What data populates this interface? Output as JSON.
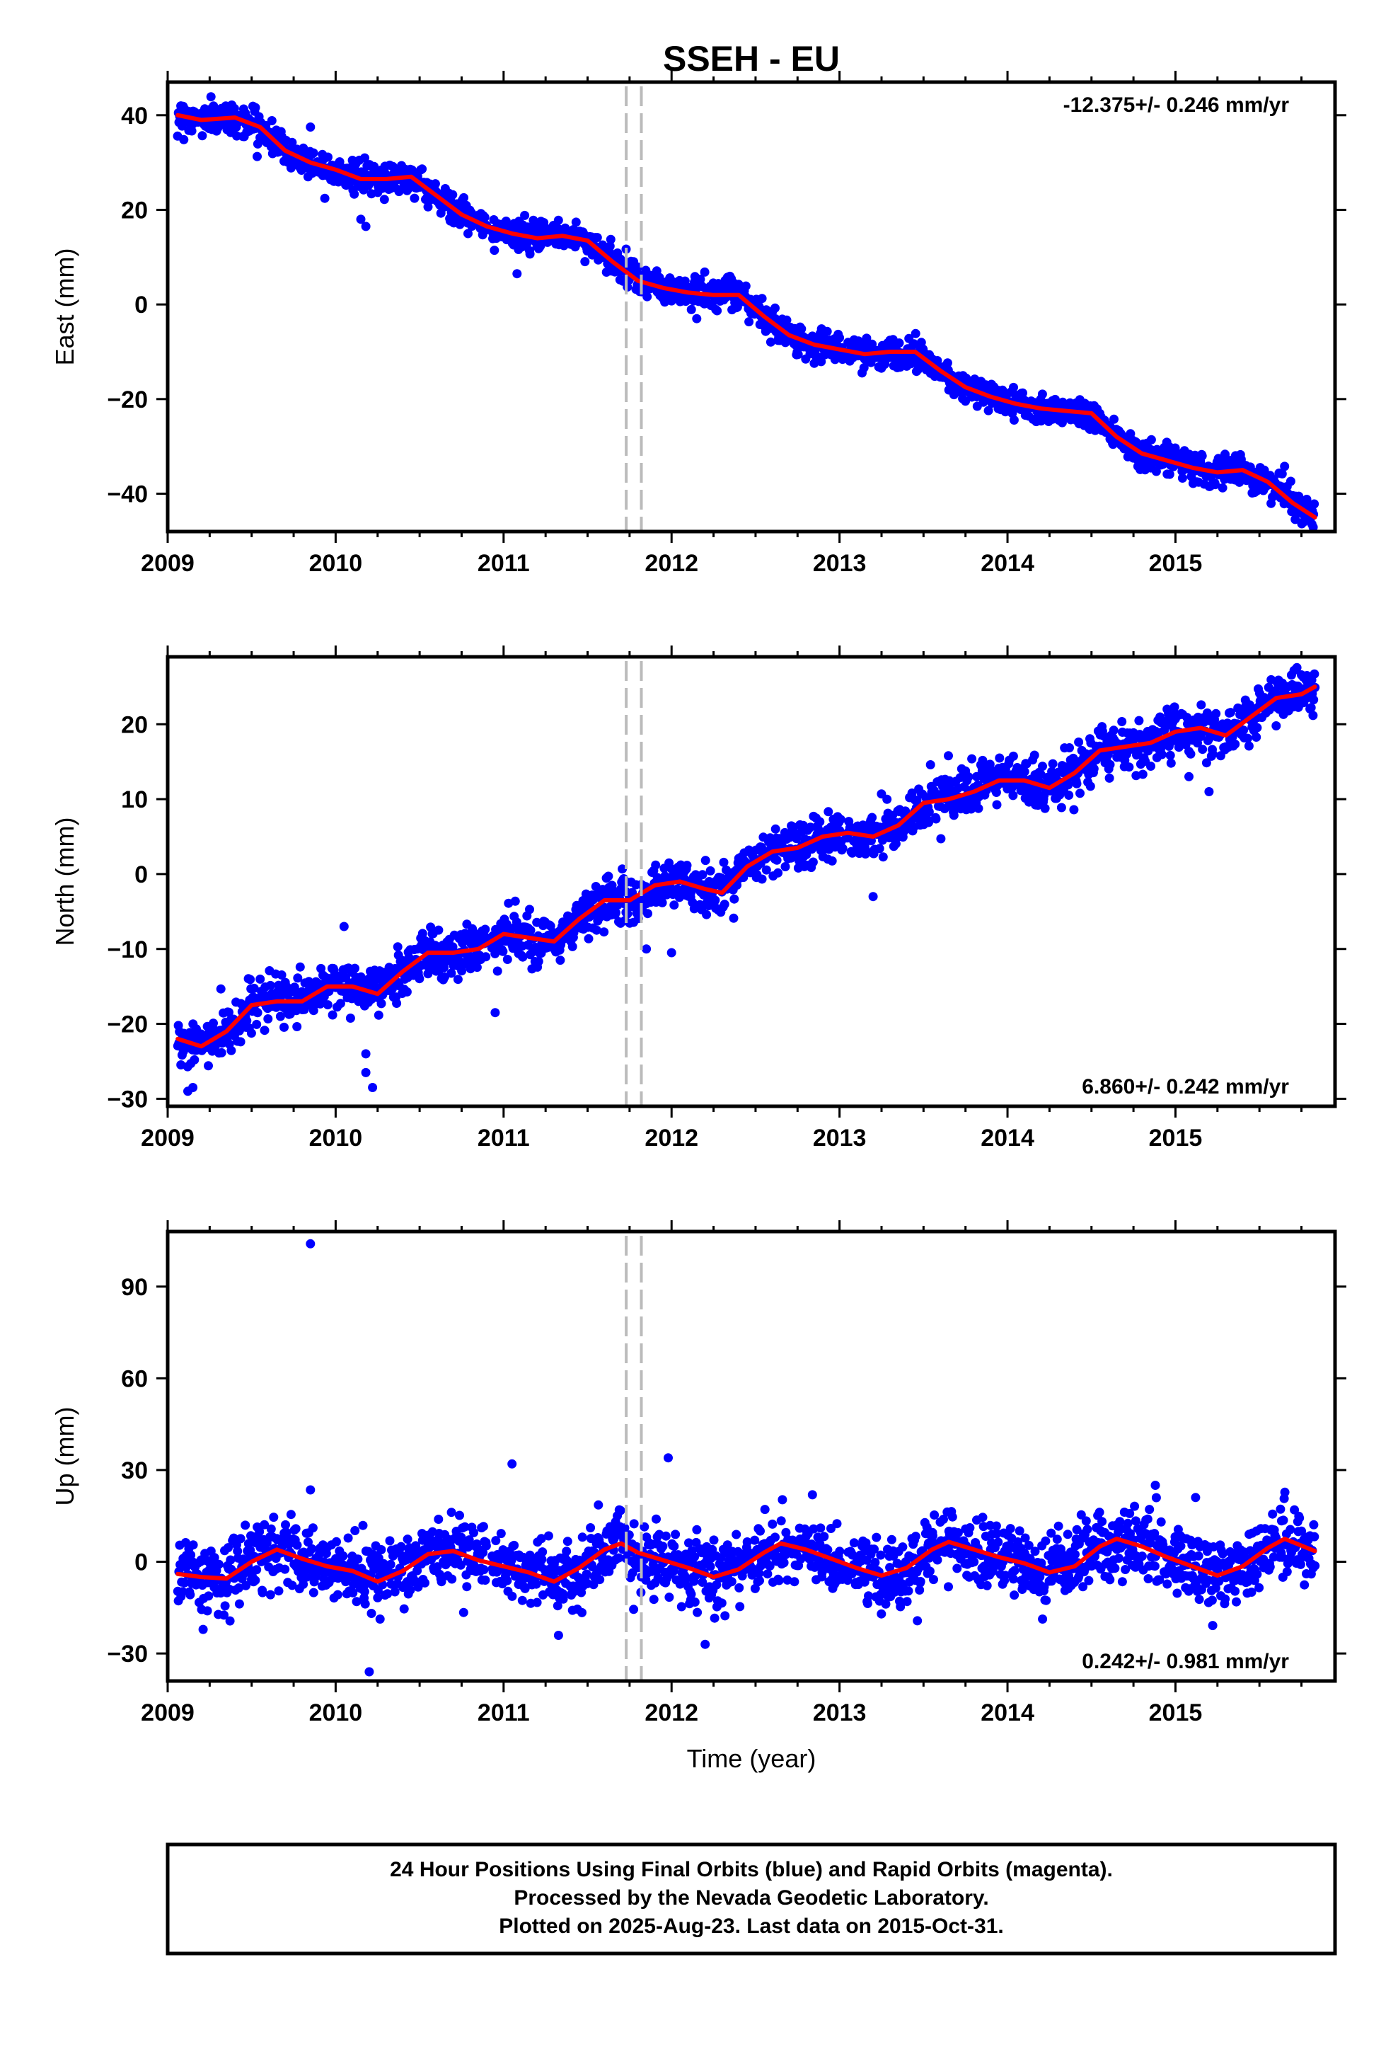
{
  "page": {
    "title": "SSEH - EU",
    "caption": [
      "24 Hour Positions Using Final Orbits (blue) and Rapid Orbits (magenta).",
      "Processed by the Nevada Geodetic Laboratory.",
      "Plotted on 2025-Aug-23. Last data on 2015-Oct-31."
    ]
  },
  "colors": {
    "points": "#0000ff",
    "fit": "#ff0000",
    "marker": "#bbbbbb",
    "frame": "#000000"
  },
  "chart_data": [
    {
      "type": "scatter",
      "ylabel": "East (mm)",
      "xlabel": "",
      "xlim": [
        2009.0,
        2015.95
      ],
      "ylim": [
        -48,
        47
      ],
      "xticks": [
        2009,
        2010,
        2011,
        2012,
        2013,
        2014,
        2015
      ],
      "yticks": [
        -40,
        -20,
        0,
        20,
        40
      ],
      "rate_label": "-12.375+/- 0.246 mm/yr",
      "rate_position": "top-right",
      "markers": [
        2011.73,
        2011.82
      ],
      "trend": {
        "t0": 2009.06,
        "y0": 40.0,
        "rate": -12.375
      },
      "fit": [
        [
          2009.06,
          40.0
        ],
        [
          2009.2,
          39.0
        ],
        [
          2009.4,
          39.5
        ],
        [
          2009.55,
          37.5
        ],
        [
          2009.7,
          32.5
        ],
        [
          2009.85,
          30.0
        ],
        [
          2010.0,
          28.5
        ],
        [
          2010.15,
          26.5
        ],
        [
          2010.3,
          26.5
        ],
        [
          2010.45,
          27.0
        ],
        [
          2010.6,
          23.0
        ],
        [
          2010.75,
          19.0
        ],
        [
          2010.9,
          16.5
        ],
        [
          2011.05,
          15.0
        ],
        [
          2011.2,
          14.0
        ],
        [
          2011.35,
          14.5
        ],
        [
          2011.5,
          13.5
        ],
        [
          2011.65,
          9.0
        ],
        [
          2011.8,
          5.0
        ],
        [
          2011.95,
          3.5
        ],
        [
          2012.1,
          2.5
        ],
        [
          2012.25,
          2.0
        ],
        [
          2012.4,
          2.0
        ],
        [
          2012.55,
          -2.5
        ],
        [
          2012.7,
          -6.5
        ],
        [
          2012.85,
          -8.5
        ],
        [
          2013.0,
          -9.5
        ],
        [
          2013.15,
          -10.5
        ],
        [
          2013.3,
          -10.0
        ],
        [
          2013.45,
          -10.0
        ],
        [
          2013.6,
          -14.0
        ],
        [
          2013.75,
          -17.5
        ],
        [
          2013.9,
          -19.5
        ],
        [
          2014.05,
          -21.0
        ],
        [
          2014.2,
          -22.0
        ],
        [
          2014.35,
          -22.5
        ],
        [
          2014.5,
          -23.0
        ],
        [
          2014.65,
          -28.0
        ],
        [
          2014.8,
          -31.5
        ],
        [
          2014.95,
          -33.0
        ],
        [
          2015.1,
          -34.5
        ],
        [
          2015.25,
          -35.5
        ],
        [
          2015.4,
          -35.0
        ],
        [
          2015.55,
          -37.5
        ],
        [
          2015.7,
          -42.0
        ],
        [
          2015.83,
          -45.0
        ]
      ],
      "outliers": [
        [
          2009.85,
          37.5
        ],
        [
          2010.15,
          18.0
        ],
        [
          2010.18,
          16.5
        ],
        [
          2011.08,
          6.5
        ],
        [
          2012.15,
          -3.0
        ],
        [
          2014.65,
          -28.0
        ]
      ],
      "scatter_sd": 1.6,
      "n_points": 1850
    },
    {
      "type": "scatter",
      "ylabel": "North (mm)",
      "xlabel": "",
      "xlim": [
        2009.0,
        2015.95
      ],
      "ylim": [
        -31,
        29
      ],
      "xticks": [
        2009,
        2010,
        2011,
        2012,
        2013,
        2014,
        2015
      ],
      "yticks": [
        -30,
        -20,
        -10,
        0,
        10,
        20
      ],
      "rate_label": "6.860+/- 0.242 mm/yr",
      "rate_position": "bottom-right",
      "markers": [
        2011.73,
        2011.82
      ],
      "trend": {
        "t0": 2009.06,
        "y0": -22.0,
        "rate": 6.86
      },
      "fit": [
        [
          2009.06,
          -22.0
        ],
        [
          2009.2,
          -23.0
        ],
        [
          2009.35,
          -21.0
        ],
        [
          2009.5,
          -17.5
        ],
        [
          2009.65,
          -17.0
        ],
        [
          2009.8,
          -17.0
        ],
        [
          2009.95,
          -15.0
        ],
        [
          2010.1,
          -15.0
        ],
        [
          2010.25,
          -16.0
        ],
        [
          2010.4,
          -13.0
        ],
        [
          2010.55,
          -10.5
        ],
        [
          2010.7,
          -10.5
        ],
        [
          2010.85,
          -10.0
        ],
        [
          2011.0,
          -8.0
        ],
        [
          2011.15,
          -8.5
        ],
        [
          2011.3,
          -9.0
        ],
        [
          2011.45,
          -6.0
        ],
        [
          2011.6,
          -3.5
        ],
        [
          2011.75,
          -3.5
        ],
        [
          2011.9,
          -1.5
        ],
        [
          2012.05,
          -1.0
        ],
        [
          2012.2,
          -2.0
        ],
        [
          2012.3,
          -2.5
        ],
        [
          2012.45,
          1.0
        ],
        [
          2012.6,
          3.0
        ],
        [
          2012.75,
          3.5
        ],
        [
          2012.9,
          5.0
        ],
        [
          2013.05,
          5.5
        ],
        [
          2013.2,
          5.0
        ],
        [
          2013.35,
          6.5
        ],
        [
          2013.5,
          9.5
        ],
        [
          2013.65,
          10.0
        ],
        [
          2013.8,
          11.0
        ],
        [
          2013.95,
          12.5
        ],
        [
          2014.1,
          12.5
        ],
        [
          2014.25,
          11.5
        ],
        [
          2014.4,
          13.5
        ],
        [
          2014.55,
          16.5
        ],
        [
          2014.7,
          17.0
        ],
        [
          2014.85,
          17.5
        ],
        [
          2015.0,
          19.0
        ],
        [
          2015.15,
          19.5
        ],
        [
          2015.3,
          18.5
        ],
        [
          2015.45,
          21.0
        ],
        [
          2015.6,
          23.5
        ],
        [
          2015.75,
          24.0
        ],
        [
          2015.83,
          25.0
        ]
      ],
      "outliers": [
        [
          2009.12,
          -29.0
        ],
        [
          2009.15,
          -28.5
        ],
        [
          2010.05,
          -7.0
        ],
        [
          2010.18,
          -26.5
        ],
        [
          2010.22,
          -28.5
        ],
        [
          2010.18,
          -24.0
        ],
        [
          2010.95,
          -18.5
        ],
        [
          2011.85,
          -10.0
        ],
        [
          2012.0,
          -10.5
        ],
        [
          2013.2,
          -3.0
        ],
        [
          2015.2,
          11.0
        ],
        [
          2015.08,
          13.0
        ]
      ],
      "scatter_sd": 1.6,
      "n_points": 1850
    },
    {
      "type": "scatter",
      "ylabel": "Up (mm)",
      "xlabel": "Time (year)",
      "xlim": [
        2009.0,
        2015.95
      ],
      "ylim": [
        -39,
        108
      ],
      "xticks": [
        2009,
        2010,
        2011,
        2012,
        2013,
        2014,
        2015
      ],
      "yticks": [
        -30,
        0,
        30,
        60,
        90
      ],
      "rate_label": "0.242+/- 0.981 mm/yr",
      "rate_position": "bottom-right",
      "markers": [
        2011.73,
        2011.82
      ],
      "trend": {
        "t0": 2009.06,
        "y0": -4.0,
        "rate": 0.242
      },
      "fit": [
        [
          2009.06,
          -4.0
        ],
        [
          2009.2,
          -5.0
        ],
        [
          2009.35,
          -5.5
        ],
        [
          2009.5,
          0.0
        ],
        [
          2009.65,
          4.0
        ],
        [
          2009.8,
          1.0
        ],
        [
          2009.95,
          -1.5
        ],
        [
          2010.1,
          -3.0
        ],
        [
          2010.25,
          -6.5
        ],
        [
          2010.4,
          -3.0
        ],
        [
          2010.55,
          2.5
        ],
        [
          2010.7,
          3.5
        ],
        [
          2010.85,
          0.5
        ],
        [
          2011.0,
          -1.5
        ],
        [
          2011.15,
          -3.5
        ],
        [
          2011.3,
          -6.5
        ],
        [
          2011.45,
          -2.0
        ],
        [
          2011.6,
          4.0
        ],
        [
          2011.7,
          6.0
        ],
        [
          2011.8,
          3.0
        ],
        [
          2011.95,
          0.5
        ],
        [
          2012.1,
          -2.0
        ],
        [
          2012.25,
          -5.0
        ],
        [
          2012.4,
          -2.5
        ],
        [
          2012.55,
          3.0
        ],
        [
          2012.65,
          6.0
        ],
        [
          2012.8,
          4.0
        ],
        [
          2012.95,
          1.0
        ],
        [
          2013.1,
          -2.0
        ],
        [
          2013.25,
          -4.5
        ],
        [
          2013.4,
          -2.0
        ],
        [
          2013.55,
          4.0
        ],
        [
          2013.65,
          6.5
        ],
        [
          2013.8,
          4.0
        ],
        [
          2013.95,
          1.5
        ],
        [
          2014.1,
          -0.5
        ],
        [
          2014.25,
          -3.5
        ],
        [
          2014.4,
          -1.5
        ],
        [
          2014.55,
          5.0
        ],
        [
          2014.65,
          7.5
        ],
        [
          2014.8,
          5.0
        ],
        [
          2014.95,
          1.5
        ],
        [
          2015.1,
          -1.5
        ],
        [
          2015.25,
          -4.5
        ],
        [
          2015.4,
          -1.5
        ],
        [
          2015.55,
          4.5
        ],
        [
          2015.65,
          7.5
        ],
        [
          2015.83,
          3.5
        ]
      ],
      "outliers": [
        [
          2009.85,
          104
        ],
        [
          2009.85,
          23.5
        ],
        [
          2011.05,
          32.0
        ],
        [
          2011.98,
          34.0
        ],
        [
          2010.2,
          -36.0
        ],
        [
          2012.2,
          -27.0
        ],
        [
          2014.88,
          25.0
        ],
        [
          2015.12,
          21.0
        ]
      ],
      "scatter_sd": 5.5,
      "n_points": 1850
    }
  ]
}
